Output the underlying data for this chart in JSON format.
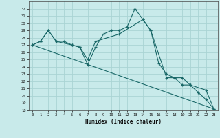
{
  "xlabel": "Humidex (Indice chaleur)",
  "xlim": [
    -0.5,
    23.5
  ],
  "ylim": [
    18,
    33
  ],
  "yticks": [
    18,
    19,
    20,
    21,
    22,
    23,
    24,
    25,
    26,
    27,
    28,
    29,
    30,
    31,
    32
  ],
  "xticks": [
    0,
    1,
    2,
    3,
    4,
    5,
    6,
    7,
    8,
    9,
    10,
    11,
    12,
    13,
    14,
    15,
    16,
    17,
    18,
    19,
    20,
    21,
    22,
    23
  ],
  "bg_color": "#c8eaea",
  "line_color": "#1a6868",
  "grid_color": "#aad4d4",
  "line1_x": [
    0,
    1,
    2,
    3,
    4,
    5,
    6,
    7,
    8,
    9,
    10,
    11,
    12,
    13,
    14,
    15,
    16,
    17,
    18,
    19,
    20,
    21,
    22,
    23
  ],
  "line1_y": [
    27.0,
    27.5,
    29.0,
    27.5,
    27.5,
    27.0,
    26.7,
    24.3,
    26.7,
    28.5,
    29.0,
    29.0,
    29.5,
    32.0,
    30.5,
    29.0,
    24.5,
    23.0,
    22.5,
    21.5,
    21.5,
    20.5,
    19.5,
    18.2
  ],
  "line2_x": [
    0,
    1,
    2,
    3,
    5,
    6,
    7,
    8,
    11,
    14,
    15,
    17,
    18,
    19,
    20,
    22,
    23
  ],
  "line2_y": [
    27.0,
    27.5,
    29.0,
    27.5,
    27.0,
    26.7,
    25.0,
    27.5,
    28.5,
    30.5,
    29.0,
    22.5,
    22.5,
    22.5,
    21.5,
    20.8,
    18.2
  ],
  "line3_x": [
    0,
    23
  ],
  "line3_y": [
    27.0,
    18.2
  ]
}
